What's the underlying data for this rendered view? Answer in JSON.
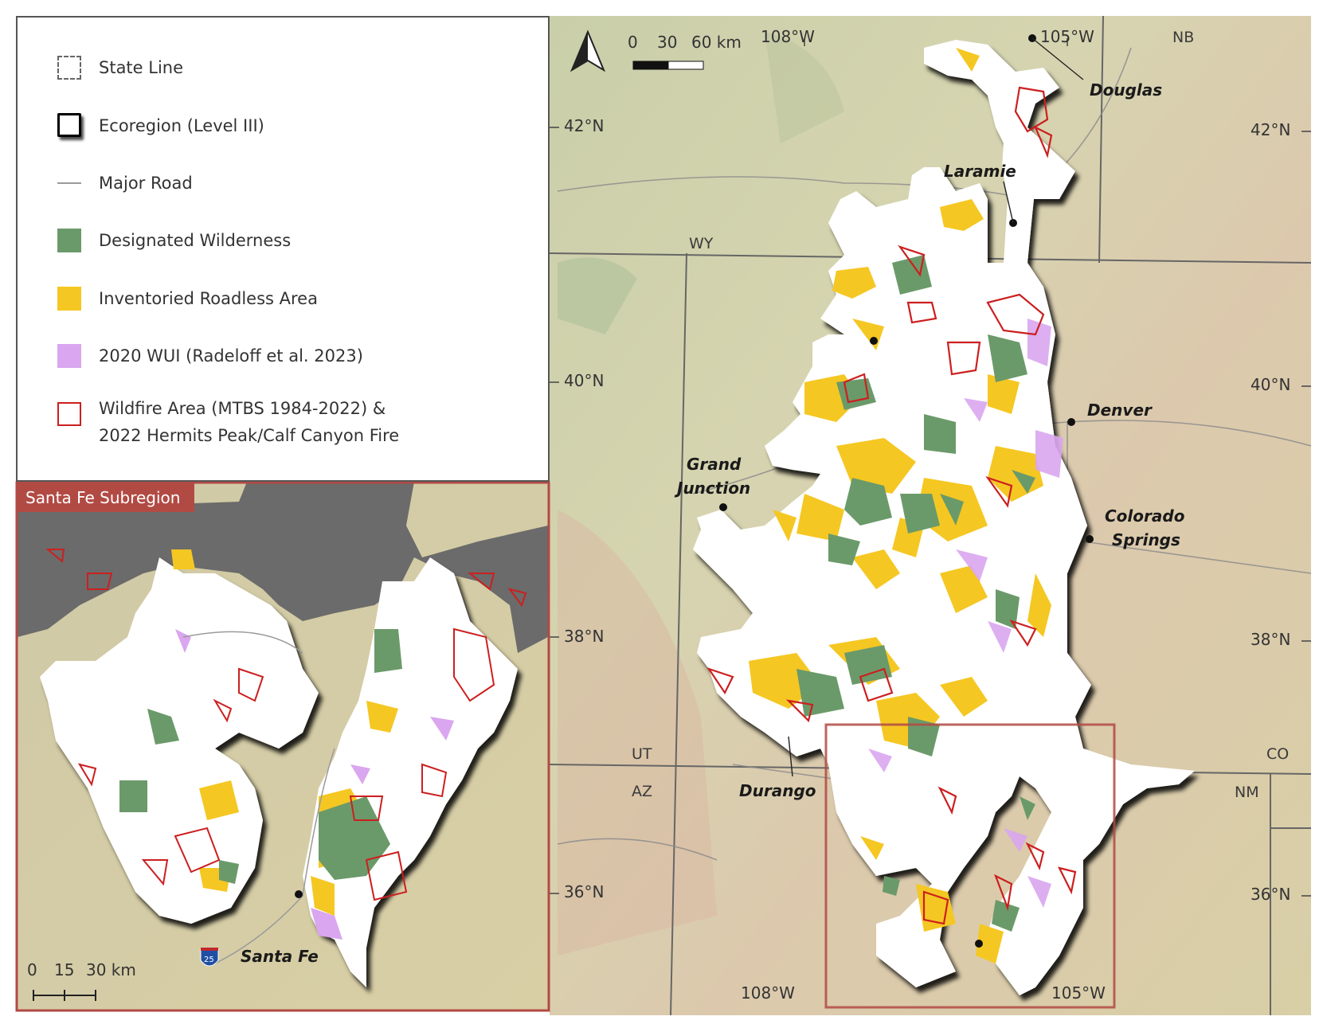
{
  "legend": {
    "items": [
      {
        "label": "State Line",
        "icon": "dashed-square-icon"
      },
      {
        "label": "Ecoregion (Level III)",
        "icon": "ecoregion-outline-icon"
      },
      {
        "label": "Major Road",
        "icon": "road-line-icon"
      },
      {
        "label": "Designated Wilderness",
        "icon": "green-square-icon",
        "color": "#6b9a6a"
      },
      {
        "label": "Inventoried Roadless Area",
        "icon": "yellow-square-icon",
        "color": "#f5c723"
      },
      {
        "label": "2020 WUI (Radeloff et al. 2023)",
        "icon": "purple-square-icon",
        "color": "#d9a6ef"
      },
      {
        "label": "Wildfire Area (MTBS 1984-2022) &",
        "label2": "2022 Hermits Peak/Calf Canyon Fire",
        "icon": "red-outline-square-icon",
        "color": "#cc1f1f"
      }
    ]
  },
  "main_map": {
    "scale": {
      "t0": "0",
      "t1": "30",
      "t2": "60 km"
    },
    "north_arrow": "north-arrow-icon",
    "graticule": {
      "lon_108": "108°W",
      "lon_105": "105°W",
      "lat_42": "42°N",
      "lat_40": "40°N",
      "lat_38": "38°N",
      "lat_36": "36°N"
    },
    "states": {
      "wy": "WY",
      "ut": "UT",
      "az": "AZ",
      "co": "CO",
      "nm": "NM",
      "nb": "NB"
    },
    "cities": {
      "douglas": "Douglas",
      "laramie": "Laramie",
      "denver": "Denver",
      "grand1": "Grand",
      "grand2": "Junction",
      "cs1": "Colorado",
      "cs2": "Springs",
      "durango": "Durango"
    }
  },
  "inset": {
    "title": "Santa Fe Subregion",
    "city": "Santa Fe",
    "interstate": "25",
    "scale": {
      "t0": "0",
      "t1": "15",
      "t2": "30 km"
    }
  },
  "colors": {
    "wilderness": "#6b9a6a",
    "roadless": "#f5c723",
    "wui": "#d9a6ef",
    "fire": "#cc1f1f",
    "inset_frame": "#b24a44"
  }
}
